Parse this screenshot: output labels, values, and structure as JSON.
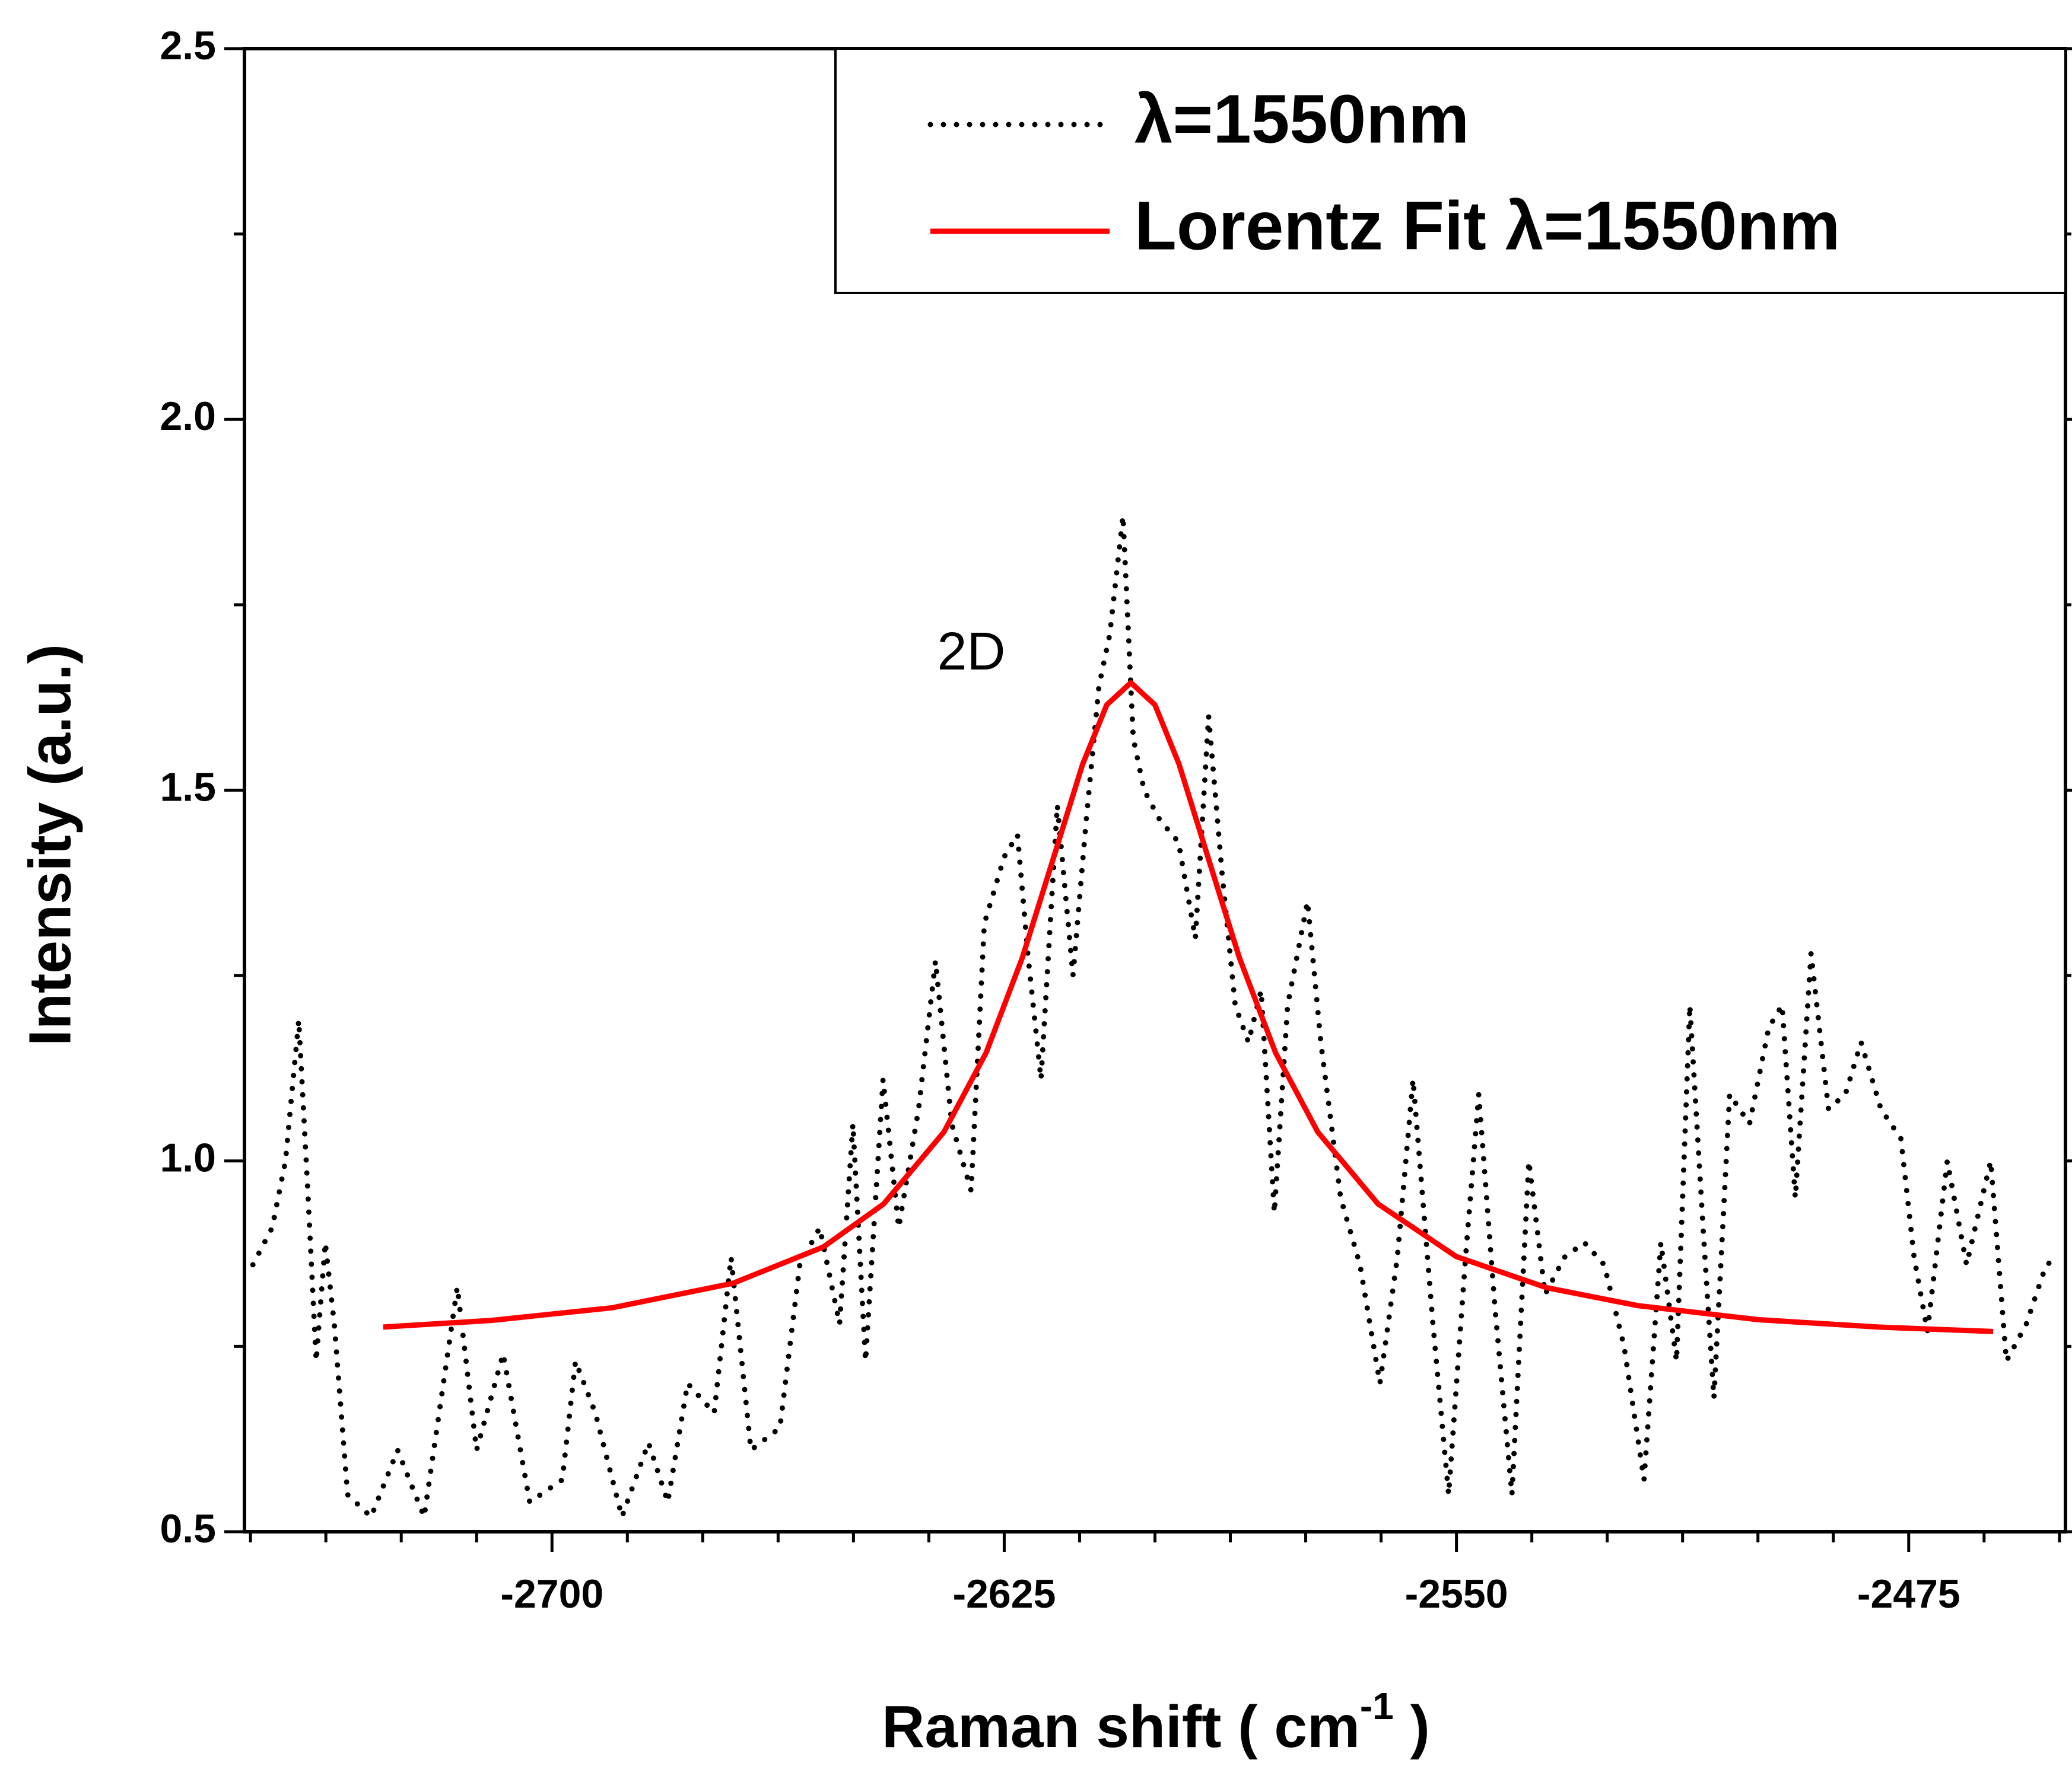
{
  "chart_data": {
    "type": "line",
    "xlabel": [
      "Raman shift ( cm",
      "-1",
      " )"
    ],
    "ylabel": "Intensity (a.u.)",
    "annotations": [
      "2D"
    ],
    "xlim": [
      -2751,
      -2449
    ],
    "ylim": [
      0.5,
      2.5
    ],
    "xticks": [
      -2700,
      -2625,
      -2550,
      -2475
    ],
    "yticks": [
      0.5,
      {
        "value": 1,
        "label": "1.0"
      },
      1.5,
      {
        "value": 2,
        "label": "2.0"
      },
      2.5
    ],
    "legend": "upper right",
    "series": [
      {
        "name": "λ=1550nm",
        "color": "#000000",
        "style": "dotted",
        "x": [
          -2749.6,
          -2746.4,
          -2744.2,
          -2742.0,
          -2740.5,
          -2739.1,
          -2737.6,
          -2736.1,
          -2733.9,
          -2730.0,
          -2725.6,
          -2721.2,
          -2715.7,
          -2712.5,
          -2708.1,
          -2703.7,
          -2698.3,
          -2696.1,
          -2692.8,
          -2688.4,
          -2684.0,
          -2680.8,
          -2677.5,
          -2673.1,
          -2670.3,
          -2667.0,
          -2662.2,
          -2658.9,
          -2655.6,
          -2652.3,
          -2650.1,
          -2648.0,
          -2645.1,
          -2642.5,
          -2639.2,
          -2636.4,
          -2633.7,
          -2630.5,
          -2628.3,
          -2625.0,
          -2622.8,
          -2621.1,
          -2618.9,
          -2616.2,
          -2613.6,
          -2611.4,
          -2609.3,
          -2607.5,
          -2605.3,
          -2603.6,
          -2601.8,
          -2599.2,
          -2596.1,
          -2593.3,
          -2591.1,
          -2588.9,
          -2586.7,
          -2584.5,
          -2582.4,
          -2580.2,
          -2578.0,
          -2574.7,
          -2572.5,
          -2569.2,
          -2566.0,
          -2562.7,
          -2559.8,
          -2557.2,
          -2553.9,
          -2551.3,
          -2548.5,
          -2546.3,
          -2543.6,
          -2540.8,
          -2538.0,
          -2535.3,
          -2532.1,
          -2528.8,
          -2525.5,
          -2522.2,
          -2518.9,
          -2516.1,
          -2513.5,
          -2511.3,
          -2509.1,
          -2507.3,
          -2504.7,
          -2501.4,
          -2498.2,
          -2496.0,
          -2493.8,
          -2491.2,
          -2488.3,
          -2485.5,
          -2482.9,
          -2479.6,
          -2476.3,
          -2474.1,
          -2471.9,
          -2468.6,
          -2465.4,
          -2461.4,
          -2458.8,
          -2455.5,
          -2452.2,
          -2450.0
        ],
        "values": [
          0.86,
          0.91,
          1.0,
          1.19,
          0.96,
          0.73,
          0.89,
          0.78,
          0.55,
          0.52,
          0.61,
          0.52,
          0.83,
          0.61,
          0.74,
          0.54,
          0.57,
          0.73,
          0.66,
          0.52,
          0.62,
          0.54,
          0.7,
          0.66,
          0.87,
          0.61,
          0.64,
          0.86,
          0.91,
          0.78,
          1.05,
          0.73,
          1.11,
          0.91,
          1.07,
          1.27,
          1.05,
          0.96,
          1.32,
          1.41,
          1.44,
          1.28,
          1.11,
          1.48,
          1.25,
          1.46,
          1.64,
          1.71,
          1.87,
          1.57,
          1.5,
          1.46,
          1.43,
          1.3,
          1.6,
          1.39,
          1.21,
          1.16,
          1.23,
          0.93,
          1.21,
          1.35,
          1.16,
          0.95,
          0.86,
          0.7,
          0.87,
          1.11,
          0.78,
          0.55,
          0.87,
          1.09,
          0.8,
          0.55,
          1.0,
          0.82,
          0.87,
          0.89,
          0.86,
          0.75,
          0.57,
          0.89,
          0.73,
          1.21,
          0.91,
          0.68,
          1.09,
          1.05,
          1.18,
          1.21,
          0.95,
          1.28,
          1.07,
          1.09,
          1.16,
          1.07,
          1.03,
          0.87,
          0.77,
          1.0,
          0.86,
          1.0,
          0.73,
          0.78,
          0.86,
          0.87
        ]
      },
      {
        "name": "Lorentz Fit λ=1550nm",
        "color": "#ff0000",
        "style": "solid",
        "x": [
          -2728,
          -2710,
          -2690,
          -2670,
          -2655,
          -2645,
          -2635,
          -2628,
          -2622,
          -2617,
          -2612,
          -2608,
          -2604,
          -2600,
          -2596,
          -2591,
          -2586,
          -2580,
          -2573,
          -2563,
          -2550,
          -2535,
          -2520,
          -2500,
          -2480,
          -2461
        ],
        "values": [
          0.776,
          0.785,
          0.802,
          0.835,
          0.884,
          0.942,
          1.039,
          1.146,
          1.274,
          1.404,
          1.535,
          1.615,
          1.645,
          1.615,
          1.535,
          1.404,
          1.274,
          1.146,
          1.039,
          0.942,
          0.871,
          0.829,
          0.805,
          0.786,
          0.776,
          0.77
        ]
      }
    ]
  }
}
